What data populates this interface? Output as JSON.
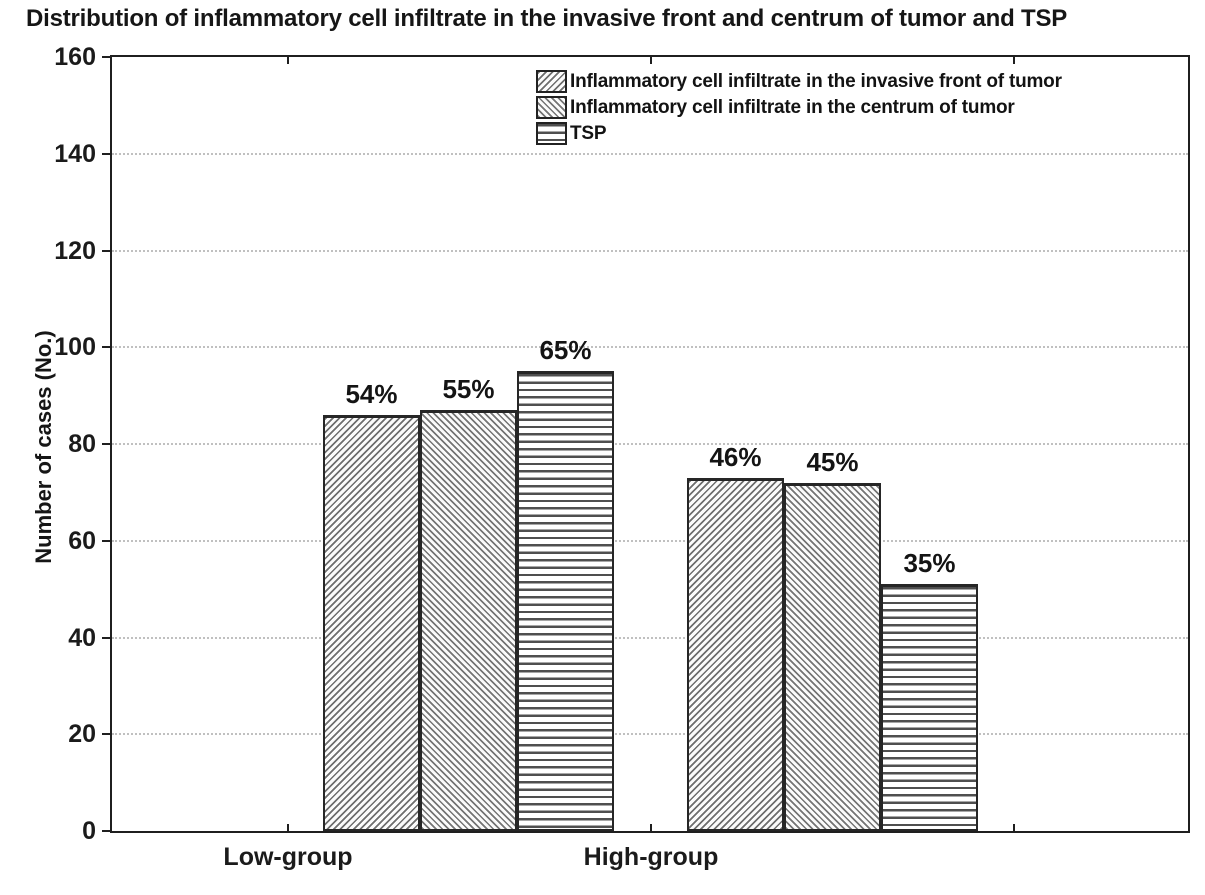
{
  "title": "Distribution of inflammatory cell infiltrate in the invasive front  and centrum of tumor and TSP",
  "chart_data": {
    "type": "bar",
    "title": "Distribution of inflammatory cell infiltrate in the invasive front  and centrum of tumor and TSP",
    "xlabel": "",
    "ylabel": "Number of cases (No.)",
    "ylim": [
      0,
      160
    ],
    "yticks": [
      0,
      20,
      40,
      60,
      80,
      100,
      120,
      140,
      160
    ],
    "grid": {
      "horizontal": true,
      "style": "dotted",
      "color": "#c0c0c0"
    },
    "legend_position": "top-center-inside",
    "categories": [
      "Low-group",
      "High-group"
    ],
    "series": [
      {
        "name": "Inflammatory cell infiltrate in the invasive front of tumor",
        "pattern": "diagonal-up",
        "values": [
          86,
          73
        ],
        "bar_labels": [
          "54%",
          "46%"
        ]
      },
      {
        "name": "Inflammatory cell infiltrate in the centrum of tumor",
        "pattern": "diagonal-down",
        "values": [
          87,
          72
        ],
        "bar_labels": [
          "55%",
          "45%"
        ]
      },
      {
        "name": "TSP",
        "pattern": "horizontal-lines",
        "values": [
          95,
          51
        ],
        "bar_labels": [
          "65%",
          "35%"
        ]
      }
    ]
  },
  "colors": {
    "ink": "#1c1c1c",
    "grid": "#c0c0c0",
    "hatch_line": "#6e6e6e",
    "tsp_line": "#4f4f4f",
    "background": "#ffffff"
  }
}
